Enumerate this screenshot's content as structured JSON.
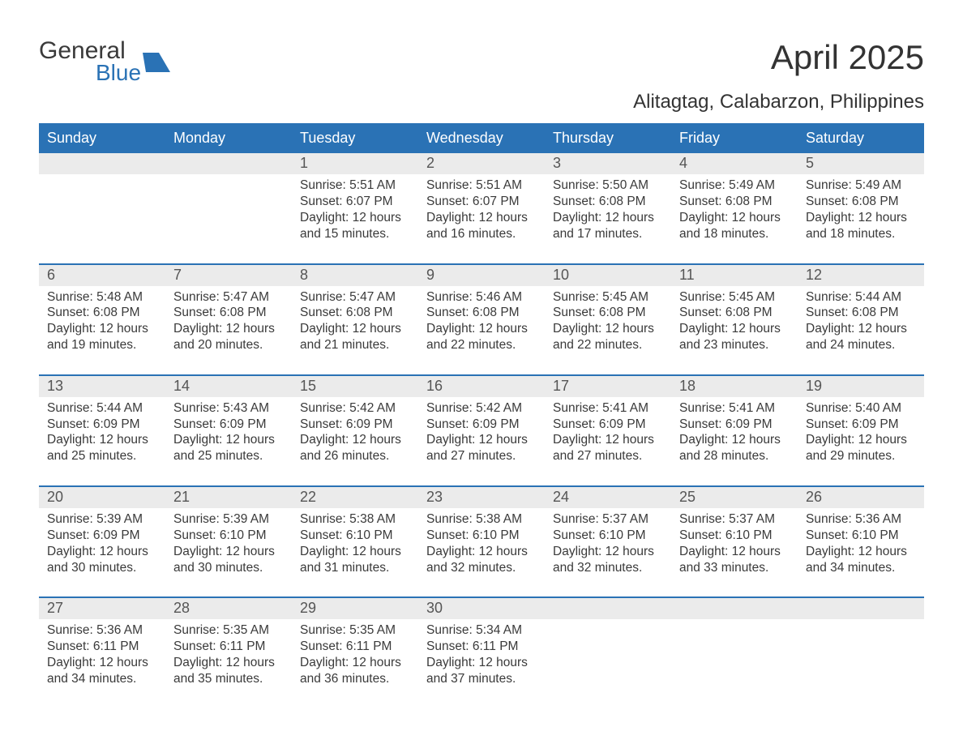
{
  "brand": {
    "line1": "General",
    "line2": "Blue",
    "icon_color": "#2a72b5",
    "text_color_dark": "#3a3a3a",
    "text_color_blue": "#2a72b5"
  },
  "title": "April 2025",
  "location": "Alitagtag, Calabarzon, Philippines",
  "colors": {
    "header_bg": "#2a72b5",
    "header_text": "#ffffff",
    "row_divider": "#2a72b5",
    "daynum_bg": "#ebebeb",
    "daynum_text": "#555555",
    "body_text": "#3a3a3a",
    "page_bg": "#ffffff"
  },
  "typography": {
    "title_fontsize": 42,
    "location_fontsize": 24,
    "dayheader_fontsize": 18,
    "daynum_fontsize": 18,
    "details_fontsize": 15.5,
    "font_family": "Arial"
  },
  "day_headers": [
    "Sunday",
    "Monday",
    "Tuesday",
    "Wednesday",
    "Thursday",
    "Friday",
    "Saturday"
  ],
  "labels": {
    "sunrise": "Sunrise:",
    "sunset": "Sunset:",
    "daylight": "Daylight:"
  },
  "weeks": [
    [
      {
        "n": "",
        "sunrise": "",
        "sunset": "",
        "daylight": ""
      },
      {
        "n": "",
        "sunrise": "",
        "sunset": "",
        "daylight": ""
      },
      {
        "n": "1",
        "sunrise": "5:51 AM",
        "sunset": "6:07 PM",
        "daylight": "12 hours and 15 minutes."
      },
      {
        "n": "2",
        "sunrise": "5:51 AM",
        "sunset": "6:07 PM",
        "daylight": "12 hours and 16 minutes."
      },
      {
        "n": "3",
        "sunrise": "5:50 AM",
        "sunset": "6:08 PM",
        "daylight": "12 hours and 17 minutes."
      },
      {
        "n": "4",
        "sunrise": "5:49 AM",
        "sunset": "6:08 PM",
        "daylight": "12 hours and 18 minutes."
      },
      {
        "n": "5",
        "sunrise": "5:49 AM",
        "sunset": "6:08 PM",
        "daylight": "12 hours and 18 minutes."
      }
    ],
    [
      {
        "n": "6",
        "sunrise": "5:48 AM",
        "sunset": "6:08 PM",
        "daylight": "12 hours and 19 minutes."
      },
      {
        "n": "7",
        "sunrise": "5:47 AM",
        "sunset": "6:08 PM",
        "daylight": "12 hours and 20 minutes."
      },
      {
        "n": "8",
        "sunrise": "5:47 AM",
        "sunset": "6:08 PM",
        "daylight": "12 hours and 21 minutes."
      },
      {
        "n": "9",
        "sunrise": "5:46 AM",
        "sunset": "6:08 PM",
        "daylight": "12 hours and 22 minutes."
      },
      {
        "n": "10",
        "sunrise": "5:45 AM",
        "sunset": "6:08 PM",
        "daylight": "12 hours and 22 minutes."
      },
      {
        "n": "11",
        "sunrise": "5:45 AM",
        "sunset": "6:08 PM",
        "daylight": "12 hours and 23 minutes."
      },
      {
        "n": "12",
        "sunrise": "5:44 AM",
        "sunset": "6:08 PM",
        "daylight": "12 hours and 24 minutes."
      }
    ],
    [
      {
        "n": "13",
        "sunrise": "5:44 AM",
        "sunset": "6:09 PM",
        "daylight": "12 hours and 25 minutes."
      },
      {
        "n": "14",
        "sunrise": "5:43 AM",
        "sunset": "6:09 PM",
        "daylight": "12 hours and 25 minutes."
      },
      {
        "n": "15",
        "sunrise": "5:42 AM",
        "sunset": "6:09 PM",
        "daylight": "12 hours and 26 minutes."
      },
      {
        "n": "16",
        "sunrise": "5:42 AM",
        "sunset": "6:09 PM",
        "daylight": "12 hours and 27 minutes."
      },
      {
        "n": "17",
        "sunrise": "5:41 AM",
        "sunset": "6:09 PM",
        "daylight": "12 hours and 27 minutes."
      },
      {
        "n": "18",
        "sunrise": "5:41 AM",
        "sunset": "6:09 PM",
        "daylight": "12 hours and 28 minutes."
      },
      {
        "n": "19",
        "sunrise": "5:40 AM",
        "sunset": "6:09 PM",
        "daylight": "12 hours and 29 minutes."
      }
    ],
    [
      {
        "n": "20",
        "sunrise": "5:39 AM",
        "sunset": "6:09 PM",
        "daylight": "12 hours and 30 minutes."
      },
      {
        "n": "21",
        "sunrise": "5:39 AM",
        "sunset": "6:10 PM",
        "daylight": "12 hours and 30 minutes."
      },
      {
        "n": "22",
        "sunrise": "5:38 AM",
        "sunset": "6:10 PM",
        "daylight": "12 hours and 31 minutes."
      },
      {
        "n": "23",
        "sunrise": "5:38 AM",
        "sunset": "6:10 PM",
        "daylight": "12 hours and 32 minutes."
      },
      {
        "n": "24",
        "sunrise": "5:37 AM",
        "sunset": "6:10 PM",
        "daylight": "12 hours and 32 minutes."
      },
      {
        "n": "25",
        "sunrise": "5:37 AM",
        "sunset": "6:10 PM",
        "daylight": "12 hours and 33 minutes."
      },
      {
        "n": "26",
        "sunrise": "5:36 AM",
        "sunset": "6:10 PM",
        "daylight": "12 hours and 34 minutes."
      }
    ],
    [
      {
        "n": "27",
        "sunrise": "5:36 AM",
        "sunset": "6:11 PM",
        "daylight": "12 hours and 34 minutes."
      },
      {
        "n": "28",
        "sunrise": "5:35 AM",
        "sunset": "6:11 PM",
        "daylight": "12 hours and 35 minutes."
      },
      {
        "n": "29",
        "sunrise": "5:35 AM",
        "sunset": "6:11 PM",
        "daylight": "12 hours and 36 minutes."
      },
      {
        "n": "30",
        "sunrise": "5:34 AM",
        "sunset": "6:11 PM",
        "daylight": "12 hours and 37 minutes."
      },
      {
        "n": "",
        "sunrise": "",
        "sunset": "",
        "daylight": ""
      },
      {
        "n": "",
        "sunrise": "",
        "sunset": "",
        "daylight": ""
      },
      {
        "n": "",
        "sunrise": "",
        "sunset": "",
        "daylight": ""
      }
    ]
  ]
}
